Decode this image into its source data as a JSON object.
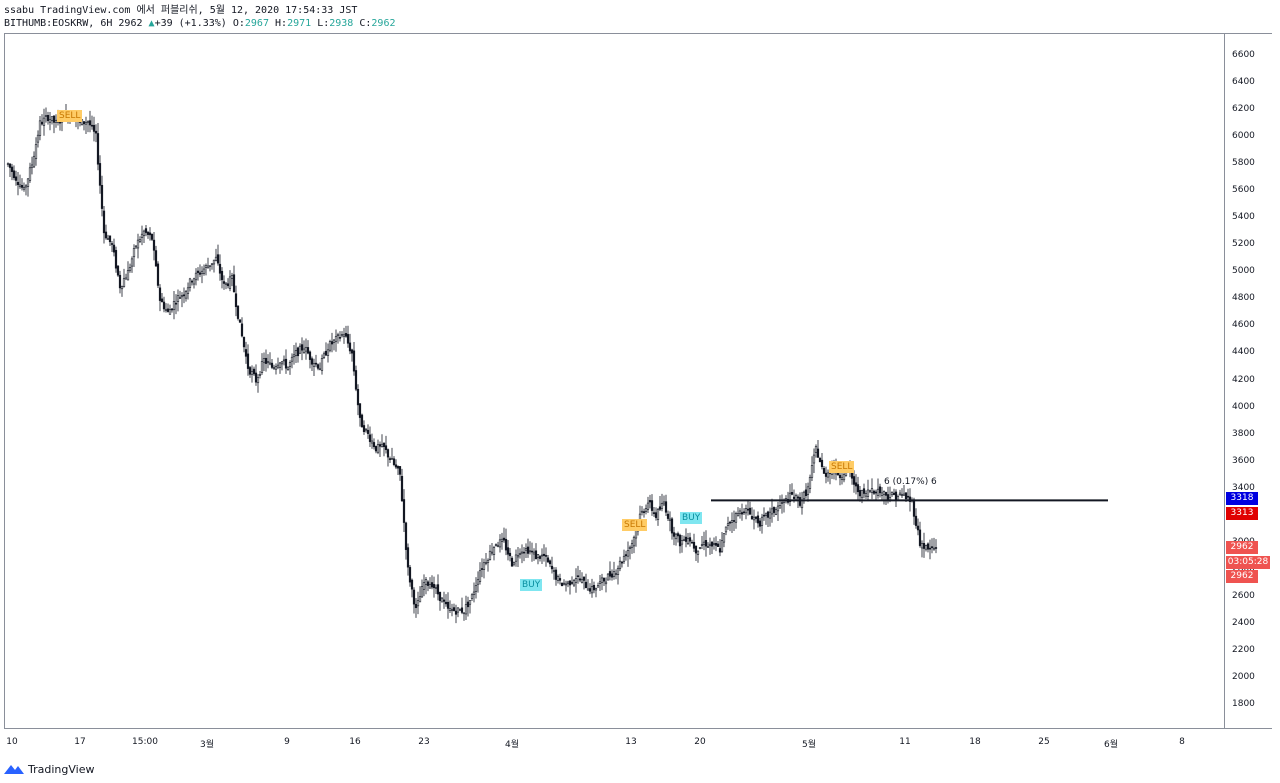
{
  "header": {
    "attribution": "ssabu TradingView.com 에서 퍼블리쉬, 5월 12, 2020 17:54:33 JST",
    "symbol": "BITHUMB:EOSKRW, 6H",
    "last": "2962",
    "change_arrow": "▲",
    "change": "+39 (+1.33%)",
    "o_label": "O:",
    "o_value": "2967",
    "h_label": "H:",
    "h_value": "2971",
    "l_label": "L:",
    "l_value": "2938",
    "c_label": "C:",
    "c_value": "2962"
  },
  "price_axis": {
    "ticks": [
      "6600",
      "6400",
      "6200",
      "6000",
      "5800",
      "5600",
      "5400",
      "5200",
      "5000",
      "4800",
      "4600",
      "4400",
      "4200",
      "4000",
      "3800",
      "3600",
      "3400",
      "3200",
      "3000",
      "2800",
      "2600",
      "2400",
      "2200",
      "2000",
      "1800"
    ]
  },
  "price_tags": {
    "blue": "3318",
    "red": "3313",
    "last": "2962",
    "countdown": "03:05:28",
    "last2": "2962"
  },
  "time_axis": {
    "ticks": [
      "10",
      "17",
      "15:00",
      "3월",
      "9",
      "16",
      "23",
      "4월",
      "13",
      "20",
      "5월",
      "11",
      "18",
      "25",
      "6월",
      "8"
    ]
  },
  "horizontal_line": {
    "label": "6 (0.17%) 6",
    "price": 3313
  },
  "signals": [
    {
      "type": "sell",
      "text": "SELL",
      "name": "signal-sell-1"
    },
    {
      "type": "sell",
      "text": "SELL",
      "name": "signal-sell-2"
    },
    {
      "type": "buy",
      "text": "BUY",
      "name": "signal-buy-1"
    },
    {
      "type": "buy",
      "text": "BUY",
      "name": "signal-buy-2"
    },
    {
      "type": "sell",
      "text": "SELL",
      "name": "signal-sell-3"
    }
  ],
  "colors": {
    "up": "#26a69a",
    "down": "#ef5350",
    "candle": "#131722",
    "blue_tag": "#0000e0",
    "red_tag": "#e00000",
    "last_tag": "#ef5350"
  },
  "footer": {
    "brand": "TradingView"
  },
  "chart_data": {
    "type": "candlestick",
    "symbol": "BITHUMB:EOSKRW",
    "interval": "6H",
    "ylim": [
      1700,
      6700
    ],
    "close_path": [
      [
        0,
        5800
      ],
      [
        4,
        5700
      ],
      [
        8,
        5600
      ],
      [
        12,
        5800
      ],
      [
        16,
        6100
      ],
      [
        20,
        6150
      ],
      [
        24,
        6100
      ],
      [
        28,
        6150
      ],
      [
        32,
        6180
      ],
      [
        36,
        6100
      ],
      [
        40,
        6120
      ],
      [
        44,
        6000
      ],
      [
        48,
        5300
      ],
      [
        52,
        5200
      ],
      [
        56,
        4900
      ],
      [
        60,
        5000
      ],
      [
        64,
        5200
      ],
      [
        68,
        5300
      ],
      [
        72,
        5250
      ],
      [
        76,
        4800
      ],
      [
        80,
        4700
      ],
      [
        84,
        4800
      ],
      [
        88,
        4850
      ],
      [
        92,
        4950
      ],
      [
        96,
        5000
      ],
      [
        100,
        5050
      ],
      [
        104,
        5100
      ],
      [
        108,
        4900
      ],
      [
        112,
        4950
      ],
      [
        116,
        4600
      ],
      [
        120,
        4300
      ],
      [
        124,
        4200
      ],
      [
        128,
        4350
      ],
      [
        132,
        4300
      ],
      [
        136,
        4350
      ],
      [
        140,
        4300
      ],
      [
        144,
        4400
      ],
      [
        148,
        4450
      ],
      [
        152,
        4350
      ],
      [
        156,
        4300
      ],
      [
        160,
        4450
      ],
      [
        164,
        4500
      ],
      [
        168,
        4550
      ],
      [
        172,
        4400
      ],
      [
        176,
        3900
      ],
      [
        180,
        3800
      ],
      [
        184,
        3700
      ],
      [
        188,
        3700
      ],
      [
        192,
        3600
      ],
      [
        196,
        3500
      ],
      [
        200,
        2800
      ],
      [
        204,
        2500
      ],
      [
        208,
        2700
      ],
      [
        212,
        2700
      ],
      [
        216,
        2600
      ],
      [
        220,
        2500
      ],
      [
        224,
        2500
      ],
      [
        228,
        2500
      ],
      [
        232,
        2600
      ],
      [
        236,
        2800
      ],
      [
        240,
        2900
      ],
      [
        244,
        3000
      ],
      [
        248,
        3000
      ],
      [
        252,
        2850
      ],
      [
        256,
        2950
      ],
      [
        260,
        2950
      ],
      [
        264,
        2900
      ],
      [
        268,
        2900
      ],
      [
        272,
        2800
      ],
      [
        276,
        2700
      ],
      [
        280,
        2700
      ],
      [
        284,
        2750
      ],
      [
        288,
        2700
      ],
      [
        292,
        2650
      ],
      [
        296,
        2700
      ],
      [
        300,
        2750
      ],
      [
        304,
        2800
      ],
      [
        308,
        2900
      ],
      [
        312,
        3000
      ],
      [
        316,
        3200
      ],
      [
        320,
        3300
      ],
      [
        324,
        3200
      ],
      [
        328,
        3300
      ],
      [
        332,
        3100
      ],
      [
        336,
        3000
      ],
      [
        340,
        3050
      ],
      [
        344,
        2950
      ],
      [
        348,
        3000
      ],
      [
        352,
        2980
      ],
      [
        356,
        2950
      ],
      [
        360,
        3150
      ],
      [
        364,
        3200
      ],
      [
        368,
        3250
      ],
      [
        372,
        3200
      ],
      [
        376,
        3150
      ],
      [
        380,
        3200
      ],
      [
        384,
        3250
      ],
      [
        388,
        3300
      ],
      [
        392,
        3350
      ],
      [
        396,
        3300
      ],
      [
        400,
        3400
      ],
      [
        404,
        3700
      ],
      [
        408,
        3500
      ],
      [
        412,
        3550
      ],
      [
        416,
        3500
      ],
      [
        420,
        3550
      ],
      [
        424,
        3400
      ],
      [
        428,
        3350
      ],
      [
        432,
        3400
      ],
      [
        436,
        3380
      ],
      [
        440,
        3350
      ],
      [
        444,
        3350
      ],
      [
        448,
        3350
      ],
      [
        452,
        3300
      ],
      [
        456,
        3000
      ],
      [
        460,
        2950
      ],
      [
        464,
        2962
      ]
    ]
  }
}
